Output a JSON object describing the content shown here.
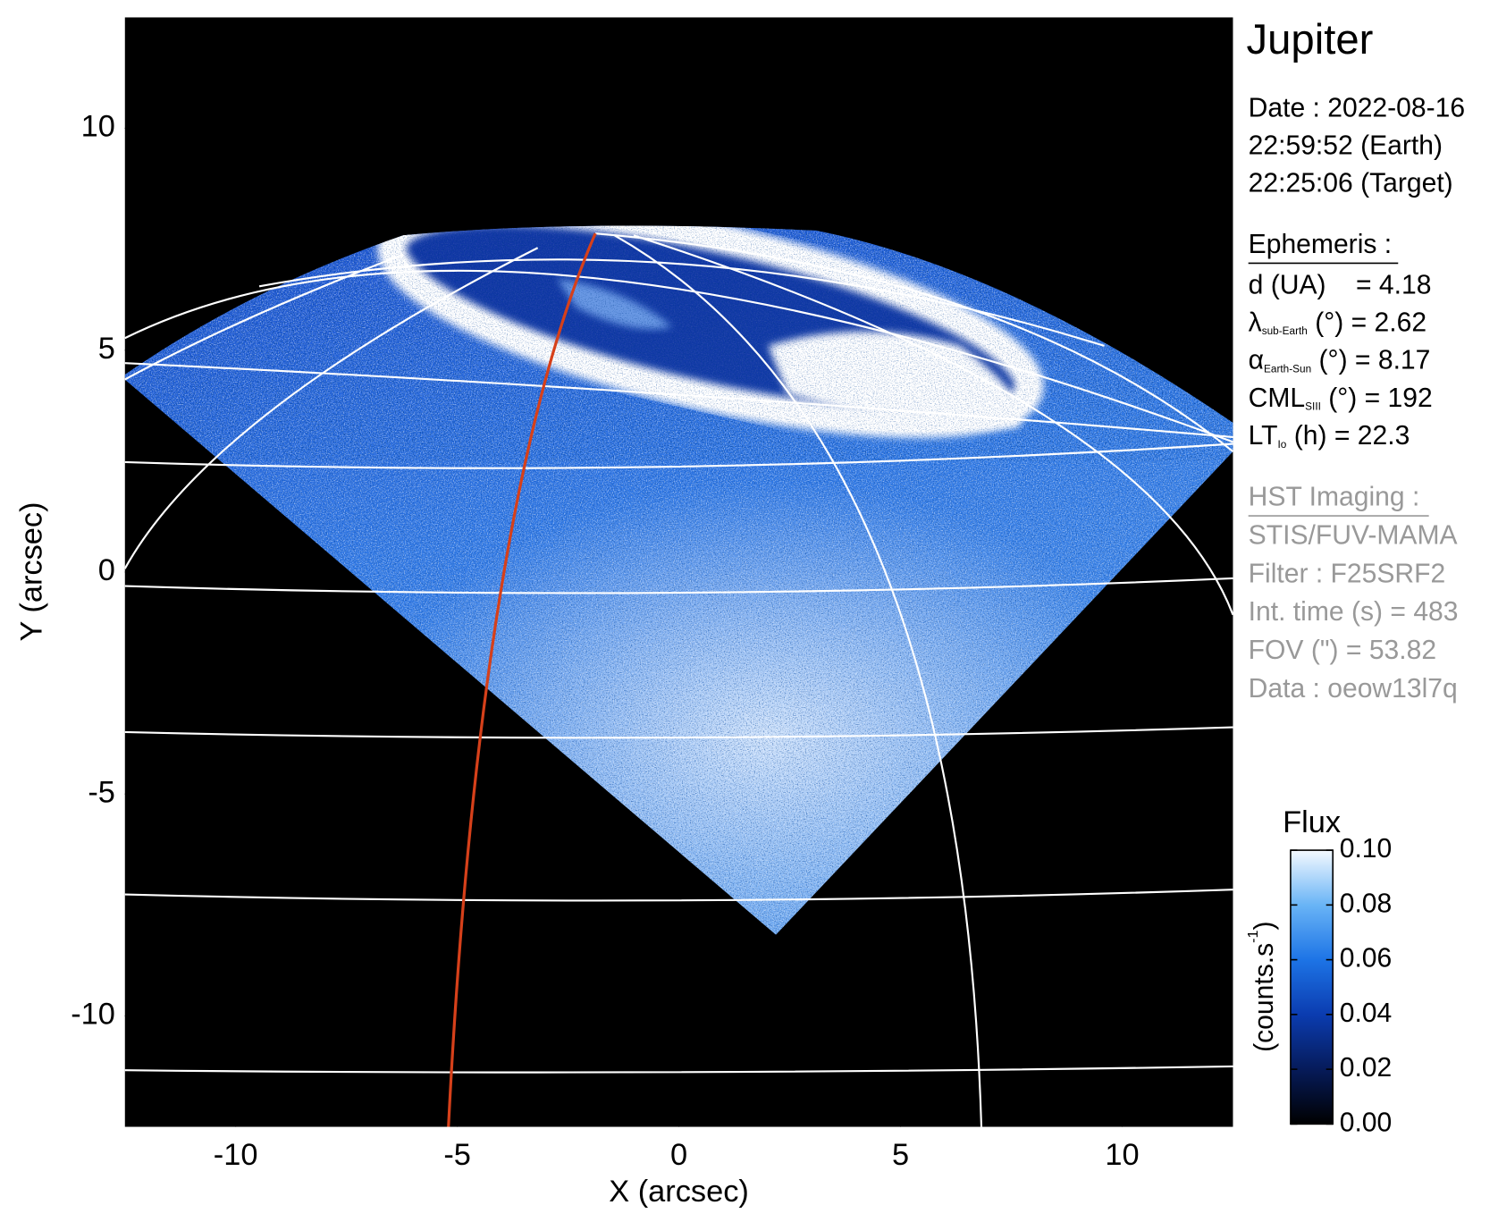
{
  "chart_data": {
    "type": "image",
    "title": "Jupiter",
    "xlabel": "X (arcsec)",
    "ylabel": "Y (arcsec)",
    "xlim": [
      -12.5,
      12.5
    ],
    "ylim": [
      -12.5,
      12.5
    ],
    "xticks": [
      -10,
      -5,
      0,
      5,
      10
    ],
    "yticks": [
      -10,
      -5,
      0,
      5,
      10
    ],
    "colorbar": {
      "title": "Flux",
      "label": "(counts.s",
      "label_sup": "-1",
      "label_end": ")",
      "lim": [
        0,
        0.1
      ],
      "ticks": [
        {
          "value": 0,
          "label": "0.00"
        },
        {
          "value": 0.02,
          "label": "0.02"
        },
        {
          "value": 0.04,
          "label": "0.04"
        },
        {
          "value": 0.06,
          "label": "0.06"
        },
        {
          "value": 0.08,
          "label": "0.08"
        },
        {
          "value": 0.1,
          "label": "0.10"
        }
      ]
    },
    "info": {
      "date_lines": [
        "Date : 2022-08-16",
        "22:59:52 (Earth)",
        "22:25:06 (Target)"
      ],
      "ephemeris_heading": "Ephemeris :",
      "ephemeris": [
        {
          "main": "d (UA)    = 4.18"
        },
        {
          "main": "λ",
          "sub": "sub-Earth",
          "rest": " (°) = 2.62"
        },
        {
          "main": "α",
          "sub": "Earth-Sun",
          "rest": " (°) = 8.17"
        },
        {
          "main": "CML",
          "sub": "SIII",
          "rest": " (°) = 192"
        },
        {
          "main": "LT",
          "sub": "Io",
          "rest": " (h) = 22.3"
        }
      ],
      "imaging_heading": "HST Imaging :",
      "imaging": [
        "STIS/FUV-MAMA",
        "Filter : F25SRF2",
        "Int. time (s) = 483",
        "FOV (\") = 53.82",
        "Data : oeow13l7q"
      ]
    }
  }
}
